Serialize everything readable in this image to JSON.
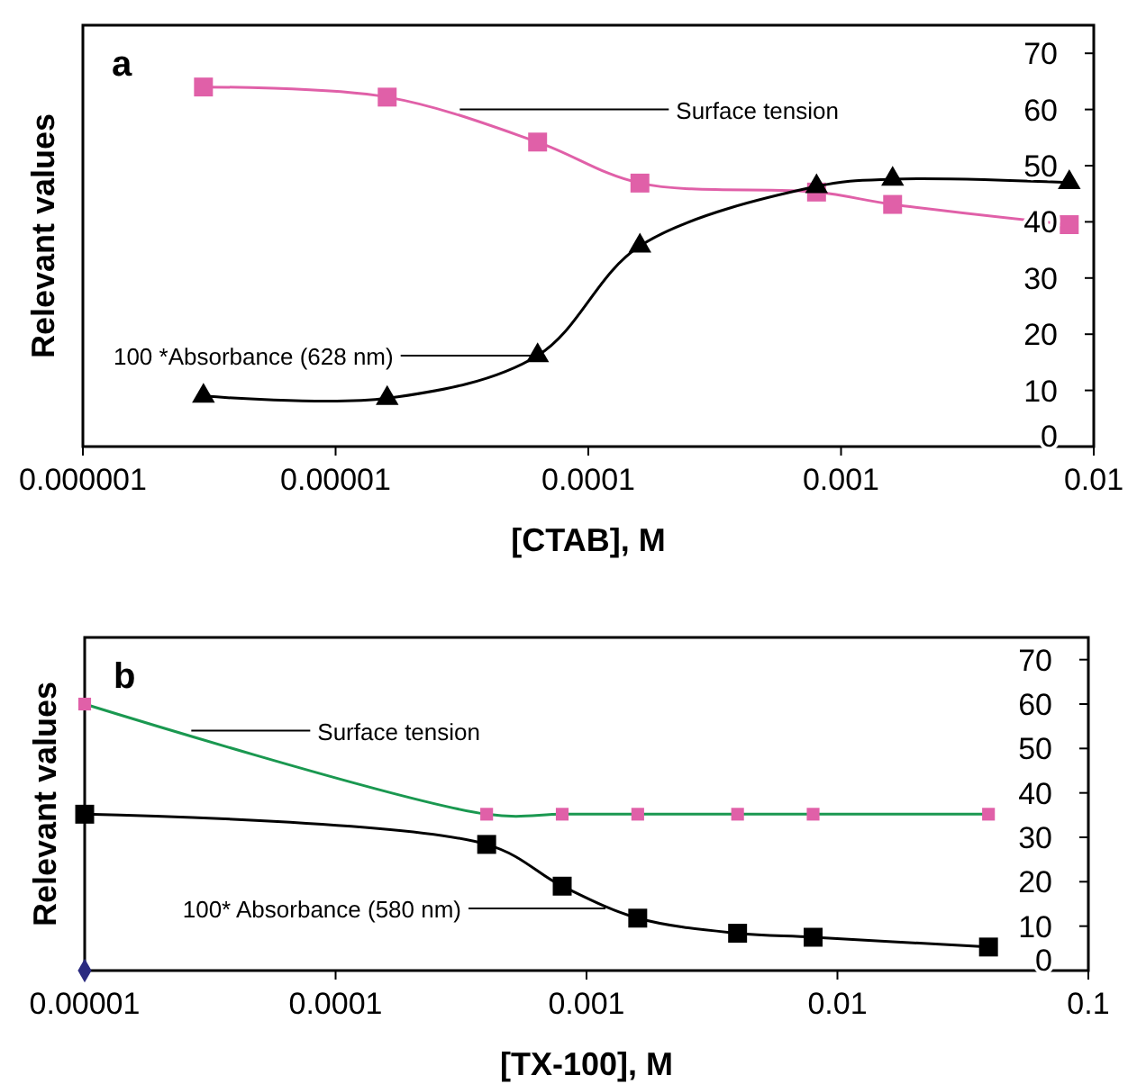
{
  "chart_data": [
    {
      "type": "line",
      "xlabel": "[CTAB], M",
      "ylabel": "Relevant values",
      "log": "x",
      "xlim": [
        1e-06,
        0.01
      ],
      "xticks": [
        {
          "value": 1e-06,
          "label": "0.000001"
        },
        {
          "value": 1e-05,
          "label": "0.00001"
        },
        {
          "value": 0.0001,
          "label": "0.0001"
        },
        {
          "value": 0.001,
          "label": "0.001"
        },
        {
          "value": 0.01,
          "label": "0.01"
        }
      ],
      "ylim": [
        0,
        75
      ],
      "yticks": [
        0,
        10,
        20,
        30,
        40,
        50,
        60,
        70
      ],
      "grid": false,
      "series": [
        {
          "color": "#e060a8",
          "marker": "square",
          "x": [
            3e-06,
            1.6e-05,
            6.3e-05,
            0.00016,
            0.0008,
            0.0016,
            0.008
          ],
          "values": [
            64,
            62.2,
            54.2,
            46.9,
            45.3,
            43.1,
            39.5
          ]
        },
        {
          "color": "#000000",
          "marker": "triangle",
          "x": [
            3e-06,
            1.6e-05,
            6.3e-05,
            0.00016,
            0.0008,
            0.0016,
            0.008
          ],
          "values": [
            9,
            8.6,
            16.2,
            35.7,
            46.3,
            47.6,
            47
          ]
        }
      ],
      "annotations": [
        "a",
        {
          "text": "Surface tension",
          "x": 3.1e-05,
          "y": 60
        },
        {
          "text": "100 *Absorbance (628 nm)",
          "x": 6.3e-05,
          "y": 16.2
        }
      ]
    },
    {
      "type": "line",
      "xlabel": "[TX-100], M",
      "ylabel": "Relevant values",
      "log": "x",
      "xlim": [
        1e-05,
        0.1
      ],
      "xticks": [
        {
          "value": 1e-05,
          "label": "0.00001"
        },
        {
          "value": 0.0001,
          "label": "0.0001"
        },
        {
          "value": 0.001,
          "label": "0.001"
        },
        {
          "value": 0.01,
          "label": "0.01"
        },
        {
          "value": 0.1,
          "label": "0.1"
        }
      ],
      "ylim": [
        0,
        75
      ],
      "yticks": [
        0,
        10,
        20,
        30,
        40,
        50,
        60,
        70
      ],
      "grid": false,
      "series": [
        {
          "color": "#1a9850",
          "marker": "none",
          "x": [
            1e-05,
            0.0004,
            0.0008,
            0.0016,
            0.004,
            0.008,
            0.04
          ],
          "values": [
            60,
            35.2,
            35.2,
            35.2,
            35.2,
            35.2,
            35.2
          ]
        },
        {
          "type": "scatter",
          "color": "#e060a8",
          "marker": "square",
          "x": [
            1e-05,
            0.0004,
            0.0008,
            0.0016,
            0.004,
            0.008,
            0.04
          ],
          "values": [
            60,
            35.2,
            35.2,
            35.2,
            35.2,
            35.2,
            35.2
          ]
        },
        {
          "color": "#000000",
          "marker": "square",
          "x": [
            1e-05,
            0.0004,
            0.0008,
            0.0016,
            0.004,
            0.008,
            0.04
          ],
          "values": [
            35.2,
            28.4,
            19,
            11.8,
            8.4,
            7.5,
            5.3
          ]
        },
        {
          "type": "scatter",
          "color": "#2b2b80",
          "marker": "diamond",
          "x": [
            1e-05
          ],
          "values": [
            0
          ]
        }
      ],
      "annotations": [
        "b",
        {
          "text": "Surface tension",
          "x": 2.66e-05,
          "y": 54
        },
        {
          "text": "100* Absorbance (580 nm)",
          "x": 0.00119,
          "y": 14
        }
      ]
    }
  ]
}
